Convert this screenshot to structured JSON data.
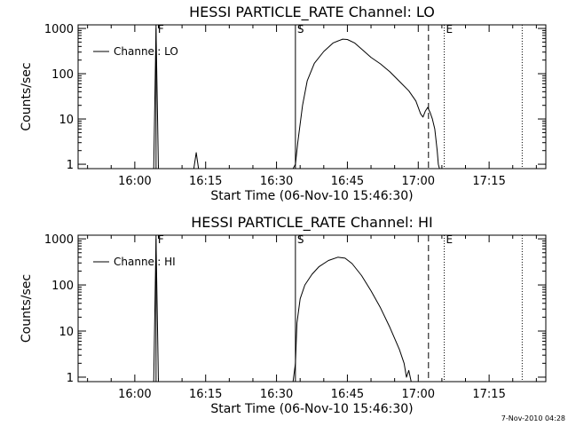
{
  "colors": {
    "background": "#ffffff",
    "foreground": "#000000"
  },
  "footer": "7-Nov-2010 04:28",
  "chart_data": [
    {
      "type": "line",
      "title": "HESSI PARTICLE_RATE Channel: LO",
      "xlabel": "Start Time (06-Nov-10 15:46:30)",
      "ylabel": "Counts/sec",
      "yscale": "log",
      "xlim": [
        "15:48:00",
        "17:27:00"
      ],
      "ylim": [
        0.8,
        1200
      ],
      "x_ticks": [
        "16:00",
        "16:15",
        "16:30",
        "16:45",
        "17:00",
        "17:15"
      ],
      "y_ticks": [
        "1",
        "10",
        "100",
        "1000"
      ],
      "legend": "top-left",
      "series": [
        {
          "name": "Channel: LO",
          "x": [
            "15:48:00",
            "16:02:30",
            "16:04:00",
            "16:04:30",
            "16:05:00",
            "16:12:00",
            "16:12:30",
            "16:13:00",
            "16:13:30",
            "16:14:00",
            "16:33:00",
            "16:33:30",
            "16:34:00",
            "16:34:30",
            "16:35:30",
            "16:36:30",
            "16:38:00",
            "16:40:00",
            "16:42:00",
            "16:44:00",
            "16:45:00",
            "16:46:30",
            "16:48:00",
            "16:50:00",
            "16:52:00",
            "16:54:00",
            "16:56:00",
            "16:58:00",
            "16:59:30",
            "17:00:30",
            "17:01:00",
            "17:01:30",
            "17:02:00",
            "17:02:30",
            "17:03:00",
            "17:03:30",
            "17:04:00",
            "17:04:15",
            "17:04:30"
          ],
          "y": [
            0.8,
            0.8,
            0.8,
            1000,
            0.8,
            0.8,
            0.8,
            1.8,
            0.8,
            0.8,
            0.8,
            0.8,
            1,
            3,
            20,
            70,
            170,
            310,
            480,
            580,
            570,
            480,
            350,
            230,
            165,
            110,
            68,
            42,
            25,
            13,
            11,
            15,
            18,
            14,
            10,
            6,
            2,
            1,
            0.8
          ]
        }
      ],
      "markers": [
        {
          "label": "F",
          "time": "16:04:30",
          "style": "solid"
        },
        {
          "label": "S",
          "time": "16:34:00",
          "style": "solid"
        },
        {
          "label": "",
          "time": "17:02:10",
          "style": "dashed"
        },
        {
          "label": "E",
          "time": "17:05:30",
          "style": "dotted"
        },
        {
          "label": "",
          "time": "17:22:00",
          "style": "dotted"
        }
      ]
    },
    {
      "type": "line",
      "title": "HESSI PARTICLE_RATE Channel: HI",
      "xlabel": "Start Time (06-Nov-10 15:46:30)",
      "ylabel": "Counts/sec",
      "yscale": "log",
      "xlim": [
        "15:48:00",
        "17:27:00"
      ],
      "ylim": [
        0.8,
        1200
      ],
      "x_ticks": [
        "16:00",
        "16:15",
        "16:30",
        "16:45",
        "17:00",
        "17:15"
      ],
      "y_ticks": [
        "1",
        "10",
        "100",
        "1000"
      ],
      "legend": "top-left",
      "series": [
        {
          "name": "Channel: HI",
          "x": [
            "15:48:00",
            "16:02:30",
            "16:04:00",
            "16:04:30",
            "16:05:00",
            "16:33:30",
            "16:34:00",
            "16:34:20",
            "16:35:00",
            "16:36:00",
            "16:37:30",
            "16:39:00",
            "16:41:00",
            "16:43:00",
            "16:44:30",
            "16:46:00",
            "16:48:00",
            "16:50:00",
            "16:52:00",
            "16:54:00",
            "16:56:00",
            "16:57:00",
            "16:57:30",
            "16:58:00",
            "16:58:30"
          ],
          "y": [
            0.8,
            0.8,
            0.8,
            1000,
            0.8,
            0.8,
            2,
            15,
            50,
            100,
            170,
            250,
            340,
            400,
            380,
            290,
            160,
            75,
            32,
            12,
            4,
            2,
            1,
            1.4,
            0.8
          ]
        }
      ],
      "markers": [
        {
          "label": "F",
          "time": "16:04:30",
          "style": "solid"
        },
        {
          "label": "S",
          "time": "16:34:00",
          "style": "solid"
        },
        {
          "label": "",
          "time": "17:02:10",
          "style": "dashed"
        },
        {
          "label": "E",
          "time": "17:05:30",
          "style": "dotted"
        },
        {
          "label": "",
          "time": "17:22:00",
          "style": "dotted"
        }
      ]
    }
  ]
}
